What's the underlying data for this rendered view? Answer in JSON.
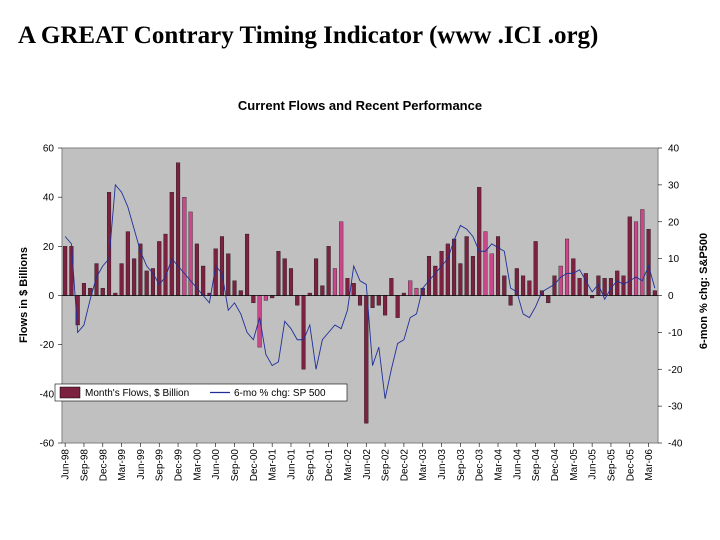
{
  "page": {
    "title": "A GREAT Contrary Timing Indicator (www .ICI .org)"
  },
  "chart_data": {
    "type": "bar",
    "title": "Current Flows and Recent Performance",
    "ylabel": "Flows in $ Billions",
    "y2label": "6-mon % chg: S&P500",
    "ylim": [
      -60,
      60
    ],
    "y2lim": [
      -40,
      40
    ],
    "yticks": [
      "60",
      "40",
      "20",
      "0",
      "-20",
      "-40",
      "-60"
    ],
    "y2ticks": [
      "40",
      "30",
      "20",
      "10",
      "0",
      "-10",
      "-20",
      "-30",
      "-40"
    ],
    "xtick_labels": [
      "Jun-98",
      "Sep-98",
      "Dec-98",
      "Mar-99",
      "Jun-99",
      "Sep-99",
      "Dec-99",
      "Mar-00",
      "Jun-00",
      "Sep-00",
      "Dec-00",
      "Mar-01",
      "Jun-01",
      "Sep-01",
      "Dec-01",
      "Mar-02",
      "Jun-02",
      "Sep-02",
      "Dec-02",
      "Mar-03",
      "Jun-03",
      "Sep-03",
      "Dec-03",
      "Mar-04",
      "Jun-04",
      "Sep-04",
      "Dec-04",
      "Mar-05",
      "Jun-05",
      "Sep-05",
      "Dec-05",
      "Mar-06"
    ],
    "legend_position": "lower-left",
    "series": [
      {
        "name": "Month's Flows, $ Billion",
        "kind": "bar",
        "axis": "left",
        "color": "#7a2240",
        "highlight_color": "#c8488a",
        "highlight_months": [
          "Jan-00",
          "Feb-00",
          "Jan-01",
          "Feb-01",
          "Jan-02",
          "Feb-02",
          "Jan-03",
          "Feb-03",
          "Jan-04",
          "Feb-04",
          "Jan-05",
          "Feb-05",
          "Jan-06",
          "Feb-06"
        ],
        "values": [
          20,
          20,
          -12,
          5,
          3,
          13,
          3,
          42,
          1,
          13,
          26,
          15,
          21,
          10,
          11,
          22,
          25,
          42,
          54,
          40,
          34,
          21,
          12,
          1,
          19,
          24,
          17,
          6,
          2,
          25,
          -3,
          -21,
          -2,
          -1,
          18,
          15,
          11,
          -4,
          -30,
          1,
          15,
          4,
          20,
          11,
          30,
          7,
          5,
          -4,
          -52,
          -5,
          -4,
          -8,
          7,
          -9,
          1,
          6,
          3,
          3,
          16,
          12,
          18,
          21,
          23,
          13,
          24,
          16,
          44,
          26,
          17,
          24,
          8,
          -4,
          11,
          8,
          6,
          22,
          2,
          -3,
          8,
          12,
          23,
          15,
          7,
          9,
          -1,
          8,
          7,
          7,
          10,
          8,
          32,
          30,
          35,
          27,
          2
        ],
        "months": [
          "Jun-98",
          "Jul-98",
          "Aug-98",
          "Sep-98",
          "Oct-98",
          "Nov-98",
          "Dec-98",
          "Jan-99",
          "Feb-99",
          "Mar-99",
          "Apr-99",
          "May-99",
          "Jun-99",
          "Jul-99",
          "Aug-99",
          "Sep-99",
          "Oct-99",
          "Nov-99",
          "Dec-99",
          "Jan-00",
          "Feb-00",
          "Mar-00",
          "Apr-00",
          "May-00",
          "Jun-00",
          "Jul-00",
          "Aug-00",
          "Sep-00",
          "Oct-00",
          "Nov-00",
          "Dec-00",
          "Jan-01",
          "Feb-01",
          "Mar-01",
          "Apr-01",
          "May-01",
          "Jun-01",
          "Jul-01",
          "Aug-01",
          "Sep-01",
          "Oct-01",
          "Nov-01",
          "Dec-01",
          "Jan-02",
          "Feb-02",
          "Mar-02",
          "Apr-02",
          "May-02",
          "Jun-02",
          "Jul-02",
          "Aug-02",
          "Sep-02",
          "Oct-02",
          "Nov-02",
          "Dec-02",
          "Jan-03",
          "Feb-03",
          "Mar-03",
          "Apr-03",
          "May-03",
          "Jun-03",
          "Jul-03",
          "Aug-03",
          "Sep-03",
          "Oct-03",
          "Nov-03",
          "Dec-03",
          "Jan-04",
          "Feb-04",
          "Mar-04",
          "Apr-04",
          "May-04",
          "Jun-04",
          "Jul-04",
          "Aug-04",
          "Sep-04",
          "Oct-04",
          "Nov-04",
          "Dec-04",
          "Jan-05",
          "Feb-05",
          "Mar-05",
          "Apr-05",
          "May-05",
          "Jun-05",
          "Jul-05",
          "Aug-05",
          "Sep-05",
          "Oct-05",
          "Nov-05",
          "Dec-05",
          "Jan-06",
          "Feb-06",
          "Mar-06",
          "Apr-06"
        ]
      },
      {
        "name": "6-mo % chg: SP 500",
        "kind": "line",
        "axis": "right",
        "color": "#1f2f9a",
        "values": [
          16,
          14,
          -10,
          -8,
          -1,
          5,
          8,
          10,
          30,
          28,
          24,
          18,
          12,
          8,
          6,
          3,
          5,
          10,
          8,
          6,
          4,
          2,
          0,
          -2,
          8,
          6,
          -4,
          -2,
          -5,
          -10,
          -12,
          -6,
          -16,
          -19,
          -18,
          -7,
          -9,
          -12,
          -12,
          -8,
          -20,
          -12,
          -10,
          -8,
          -9,
          -4,
          8,
          4,
          3,
          -19,
          -14,
          -28,
          -20,
          -13,
          -12,
          -6,
          -5,
          2,
          4,
          6,
          8,
          10,
          15,
          19,
          18,
          16,
          12,
          12,
          14,
          13,
          12,
          2,
          1,
          -5,
          -6,
          -3,
          1,
          2,
          3,
          5,
          6,
          6,
          7,
          4,
          1,
          3,
          -1,
          2,
          4,
          3,
          4,
          5,
          4,
          8,
          2
        ]
      }
    ],
    "grid": false,
    "plot_background": "#c0c0c0"
  }
}
